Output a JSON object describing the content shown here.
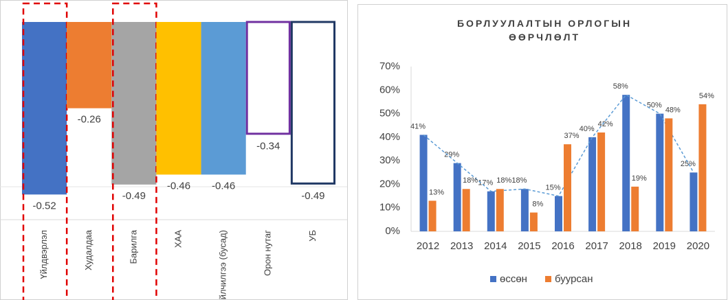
{
  "chart_data": [
    {
      "type": "bar",
      "categories": [
        "Үйлдвэрлэл",
        "Худалдаа",
        "Барилга",
        "ХАА",
        "Үйлчилгээ (бусад)",
        "Орон нутаг",
        "УБ"
      ],
      "values": [
        -0.52,
        -0.26,
        -0.49,
        -0.46,
        -0.46,
        -0.34,
        -0.49
      ],
      "colors": [
        "#4472c4",
        "#ed7d31",
        "#a5a5a5",
        "#ffc000",
        "#5b9bd5",
        "#7030a0",
        "#203864"
      ],
      "outline": [
        false,
        false,
        false,
        false,
        false,
        true,
        true
      ],
      "highlight": [
        true,
        false,
        true,
        false,
        false,
        false,
        false
      ],
      "ylim": [
        -0.6,
        0
      ]
    },
    {
      "type": "grouped_bar",
      "title": "БОРЛУУЛАЛТЫН ОРЛОГЫН ӨӨРЧЛӨЛТ",
      "categories": [
        "2012",
        "2013",
        "2014",
        "2015",
        "2016",
        "2017",
        "2018",
        "2019",
        "2020"
      ],
      "series": [
        {
          "name": "өссөн",
          "color": "#4472c4",
          "line_style": "dashed",
          "values": [
            41,
            29,
            17,
            18,
            15,
            40,
            58,
            50,
            25
          ],
          "value_labels": [
            "41%",
            "29%",
            "17%",
            "18%",
            "15%",
            "40%",
            "58%",
            "50%",
            "25%"
          ]
        },
        {
          "name": "буурсан",
          "color": "#ed7d31",
          "values": [
            13,
            18,
            18,
            8,
            37,
            42,
            19,
            48,
            54
          ],
          "value_labels": [
            "13%",
            "18%",
            "18%",
            "8%",
            "37%",
            "42%",
            "19%",
            "48%",
            "54%"
          ]
        }
      ],
      "ylim": [
        0,
        70
      ],
      "yticks": [
        {
          "value": 0,
          "label": "0%"
        },
        {
          "value": 10,
          "label": "10%"
        },
        {
          "value": 20,
          "label": "20%"
        },
        {
          "value": 30,
          "label": "30%"
        },
        {
          "value": 40,
          "label": "40%"
        },
        {
          "value": 50,
          "label": "50%"
        },
        {
          "value": 60,
          "label": "60%"
        },
        {
          "value": 70,
          "label": "70%"
        }
      ],
      "grid": false,
      "legend": "bottom"
    }
  ]
}
